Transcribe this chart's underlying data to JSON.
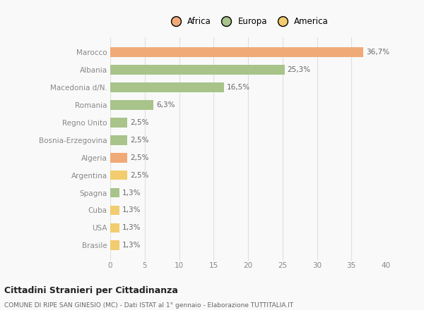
{
  "categories": [
    "Brasile",
    "USA",
    "Cuba",
    "Spagna",
    "Argentina",
    "Algeria",
    "Bosnia-Erzegovina",
    "Regno Unito",
    "Romania",
    "Macedonia d/N.",
    "Albania",
    "Marocco"
  ],
  "values": [
    1.3,
    1.3,
    1.3,
    1.3,
    2.5,
    2.5,
    2.5,
    2.5,
    6.3,
    16.5,
    25.3,
    36.7
  ],
  "colors": [
    "#f2cc6e",
    "#f2cc6e",
    "#f2cc6e",
    "#a8c48a",
    "#f2cc6e",
    "#f0aa78",
    "#a8c48a",
    "#a8c48a",
    "#a8c48a",
    "#a8c48a",
    "#a8c48a",
    "#f0aa78"
  ],
  "labels": [
    "1,3%",
    "1,3%",
    "1,3%",
    "1,3%",
    "2,5%",
    "2,5%",
    "2,5%",
    "2,5%",
    "6,3%",
    "16,5%",
    "25,3%",
    "36,7%"
  ],
  "legend": [
    {
      "label": "Africa",
      "color": "#f0aa78"
    },
    {
      "label": "Europa",
      "color": "#a8c48a"
    },
    {
      "label": "America",
      "color": "#f2cc6e"
    }
  ],
  "xlim": [
    0,
    40
  ],
  "xticks": [
    0,
    5,
    10,
    15,
    20,
    25,
    30,
    35,
    40
  ],
  "title": "Cittadini Stranieri per Cittadinanza",
  "subtitle": "COMUNE DI RIPE SAN GINESIO (MC) - Dati ISTAT al 1° gennaio - Elaborazione TUTTITALIA.IT",
  "background_color": "#f9f9f9",
  "grid_color": "#e0e0e0",
  "label_color": "#666666",
  "tick_color": "#888888"
}
